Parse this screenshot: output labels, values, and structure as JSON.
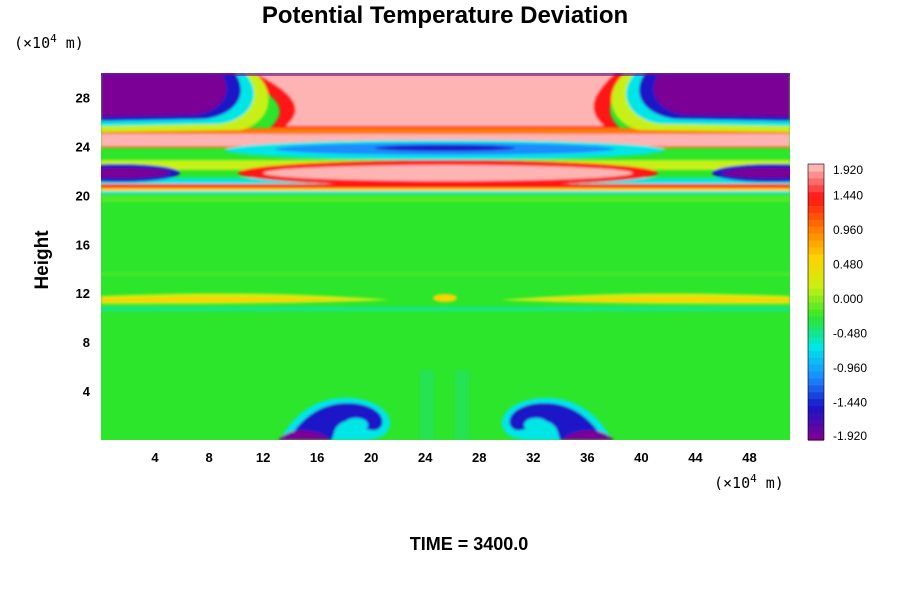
{
  "chart_data": {
    "type": "heatmap",
    "title": "Potential Temperature Deviation",
    "ylabel": "Height",
    "xlabel": "",
    "x_unit_prefix": "(×10",
    "x_unit_exp": "4",
    "x_unit_suffix": " m)",
    "y_unit_prefix": "(×10",
    "y_unit_exp": "4",
    "y_unit_suffix": " m)",
    "xlim": [
      0,
      51
    ],
    "ylim": [
      0,
      30
    ],
    "x_ticks": [
      "4",
      "8",
      "12",
      "16",
      "20",
      "24",
      "28",
      "32",
      "36",
      "40",
      "44",
      "48"
    ],
    "y_ticks": [
      "4",
      "8",
      "12",
      "16",
      "20",
      "24",
      "28"
    ],
    "colorbar": {
      "min": -1.92,
      "max": 1.92,
      "tick_labels": [
        "1.920",
        "1.440",
        "0.960",
        "0.480",
        "0.000",
        "-0.480",
        "-0.960",
        "-1.440",
        "-1.920"
      ],
      "colors": [
        "#7a0096",
        "#1a14c8",
        "#1a8cff",
        "#00e6e6",
        "#2ce62c",
        "#c8f014",
        "#ffd200",
        "#ff7800",
        "#ff1414",
        "#ffb4b4"
      ]
    },
    "regions": [
      {
        "label": "upper warm dome",
        "x": [
          10,
          40
        ],
        "y": [
          25.5,
          30
        ],
        "value": 1.92
      },
      {
        "label": "upper-left cold lobe",
        "x": [
          0,
          9
        ],
        "y": [
          25.5,
          30
        ],
        "value": -1.92
      },
      {
        "label": "upper-right cold lobe",
        "x": [
          42,
          51
        ],
        "y": [
          25.5,
          30
        ],
        "value": -1.92
      },
      {
        "label": "warm band",
        "x": [
          0,
          51
        ],
        "y": [
          23.5,
          25
        ],
        "value": 1.92
      },
      {
        "label": "cold lens",
        "x": [
          14,
          37
        ],
        "y": [
          23.2,
          24.6
        ],
        "value": -1.44
      },
      {
        "label": "warm lens",
        "x": [
          15,
          36
        ],
        "y": [
          21.2,
          22.7
        ],
        "value": 1.92
      },
      {
        "label": "left cold layer",
        "x": [
          0,
          6
        ],
        "y": [
          21,
          22
        ],
        "value": -1.92
      },
      {
        "label": "right cold layer",
        "x": [
          45,
          51
        ],
        "y": [
          21,
          22
        ],
        "value": -1.92
      },
      {
        "label": "warm ridge near 20",
        "x": [
          0,
          51
        ],
        "y": [
          20,
          21
        ],
        "value": 0.96
      },
      {
        "label": "background",
        "x": [
          0,
          51
        ],
        "y": [
          0,
          20
        ],
        "value": 0.0
      },
      {
        "label": "tropopause arms",
        "x": [
          0,
          51
        ],
        "y": [
          11,
          12
        ],
        "value": 0.48
      },
      {
        "label": "left rotor",
        "x": [
          13,
          21
        ],
        "y": [
          0,
          3.5
        ],
        "value": -1.44
      },
      {
        "label": "right rotor",
        "x": [
          30,
          38
        ],
        "y": [
          0,
          3.5
        ],
        "value": -1.44
      }
    ]
  },
  "footer": {
    "time_label": "TIME = 3400.0"
  },
  "colors": {
    "background": "#ffffff",
    "field_base": "#2ce62c"
  }
}
